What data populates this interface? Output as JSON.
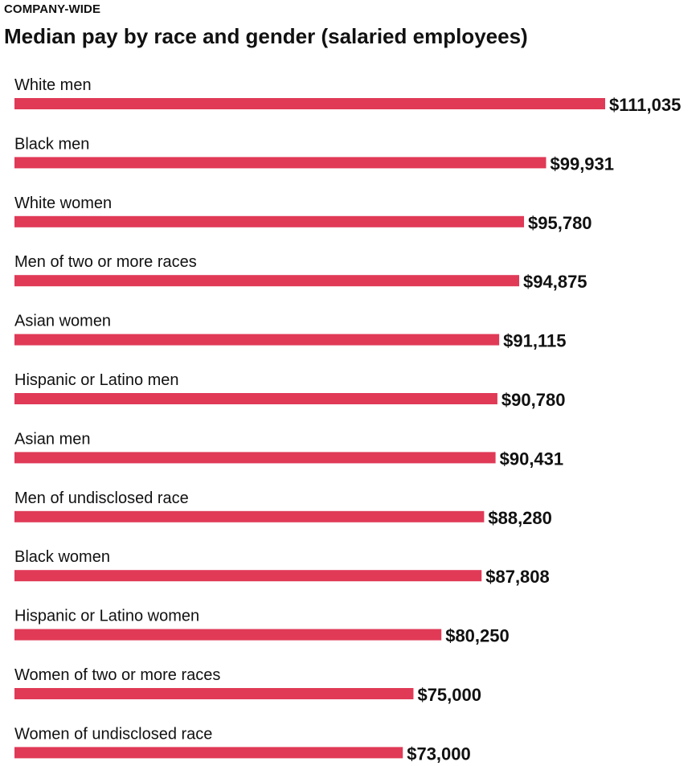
{
  "kicker": "COMPANY-WIDE",
  "title": "Median pay by race and gender (salaried employees)",
  "colors": {
    "bar": "#e03a57"
  },
  "chart_data": {
    "type": "bar",
    "orientation": "horizontal",
    "title": "Median pay by race and gender (salaried employees)",
    "xlabel": "",
    "ylabel": "",
    "xlim": [
      0,
      111035
    ],
    "grid": false,
    "categories": [
      "White men",
      "Black men",
      "White women",
      "Men of two or more races",
      "Asian women",
      "Hispanic or Latino men",
      "Asian men",
      "Men of undisclosed race",
      "Black women",
      "Hispanic or Latino women",
      "Women of two or more races",
      "Women of undisclosed race"
    ],
    "values": [
      111035,
      99931,
      95780,
      94875,
      91115,
      90780,
      90431,
      88280,
      87808,
      80250,
      75000,
      73000
    ],
    "value_labels": [
      "$111,035",
      "$99,931",
      "$95,780",
      "$94,875",
      "$91,115",
      "$90,780",
      "$90,431",
      "$88,280",
      "$87,808",
      "$80,250",
      "$75,000",
      "$73,000"
    ]
  }
}
